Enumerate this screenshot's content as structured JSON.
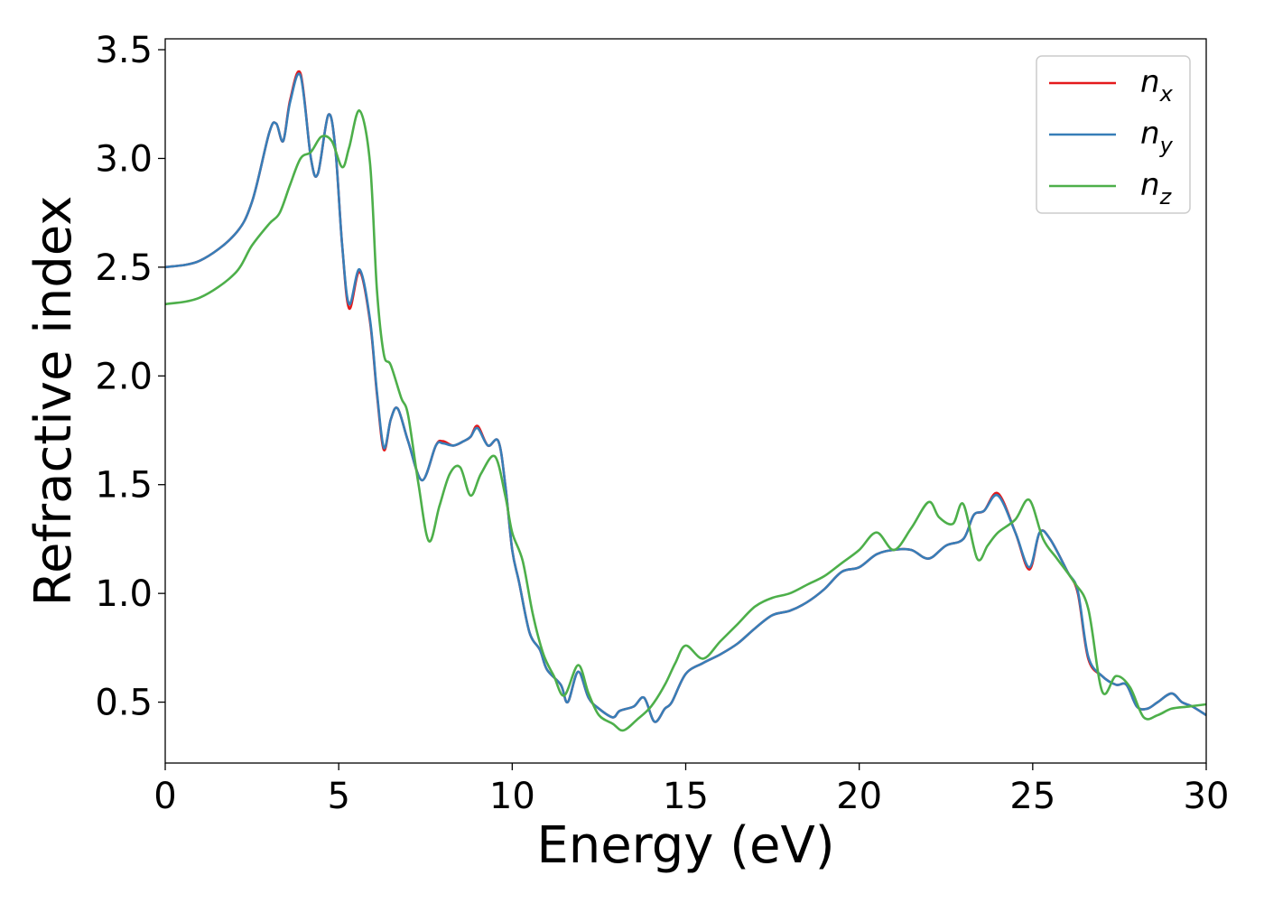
{
  "chart_data": {
    "type": "line",
    "xlabel": "Energy (eV)",
    "ylabel": "Refractive index",
    "xlim": [
      0,
      30
    ],
    "ylim": [
      0.22,
      3.55
    ],
    "xticks": [
      0,
      5,
      10,
      15,
      20,
      25,
      30
    ],
    "yticks": [
      0.5,
      1.0,
      1.5,
      2.0,
      2.5,
      3.0,
      3.5
    ],
    "xtick_labels": [
      "0",
      "5",
      "10",
      "15",
      "20",
      "25",
      "30"
    ],
    "ytick_labels": [
      "0.5",
      "1.0",
      "1.5",
      "2.0",
      "2.5",
      "3.0",
      "3.5"
    ],
    "grid": false,
    "legend_position": "top-right",
    "series": [
      {
        "name_base": "n",
        "name_sub": "x",
        "color": "#e41a1c",
        "x": [
          0,
          1,
          2,
          2.5,
          3,
          3.2,
          3.4,
          3.6,
          3.9,
          4.2,
          4.4,
          4.7,
          4.9,
          5.1,
          5.3,
          5.6,
          5.9,
          6.1,
          6.3,
          6.5,
          6.7,
          7,
          7.4,
          7.8,
          8,
          8.3,
          8.6,
          8.8,
          9,
          9.3,
          9.6,
          9.8,
          10,
          10.2,
          10.5,
          10.8,
          11,
          11.4,
          11.6,
          11.9,
          12.2,
          12.5,
          12.9,
          13.1,
          13.5,
          13.8,
          14.1,
          14.4,
          14.6,
          15,
          15.5,
          16,
          16.5,
          17,
          17.5,
          18,
          18.5,
          19,
          19.5,
          20,
          20.5,
          21,
          21.5,
          22,
          22.5,
          23,
          23.3,
          23.6,
          24,
          24.5,
          24.9,
          25.2,
          25.5,
          26,
          26.3,
          26.6,
          27,
          27.4,
          27.7,
          28,
          28.3,
          28.6,
          29,
          29.3,
          29.6,
          30
        ],
        "y": [
          2.5,
          2.53,
          2.65,
          2.8,
          3.12,
          3.16,
          3.08,
          3.27,
          3.39,
          3.0,
          2.93,
          3.2,
          3.05,
          2.6,
          2.31,
          2.48,
          2.25,
          1.92,
          1.66,
          1.8,
          1.85,
          1.7,
          1.52,
          1.68,
          1.7,
          1.68,
          1.7,
          1.72,
          1.77,
          1.68,
          1.7,
          1.5,
          1.2,
          1.05,
          0.82,
          0.74,
          0.65,
          0.58,
          0.5,
          0.64,
          0.52,
          0.47,
          0.43,
          0.46,
          0.48,
          0.52,
          0.41,
          0.47,
          0.5,
          0.63,
          0.68,
          0.72,
          0.77,
          0.84,
          0.9,
          0.92,
          0.96,
          1.02,
          1.1,
          1.12,
          1.18,
          1.2,
          1.2,
          1.16,
          1.22,
          1.25,
          1.36,
          1.38,
          1.46,
          1.28,
          1.11,
          1.28,
          1.25,
          1.1,
          1.0,
          0.7,
          0.62,
          0.58,
          0.58,
          0.48,
          0.47,
          0.5,
          0.54,
          0.5,
          0.48,
          0.44
        ]
      },
      {
        "name_base": "n",
        "name_sub": "y",
        "color": "#377eb8",
        "x": [
          0,
          1,
          2,
          2.5,
          3,
          3.2,
          3.4,
          3.6,
          3.9,
          4.2,
          4.4,
          4.7,
          4.9,
          5.1,
          5.3,
          5.6,
          5.9,
          6.1,
          6.3,
          6.5,
          6.7,
          7,
          7.4,
          7.8,
          8,
          8.3,
          8.6,
          8.8,
          9,
          9.3,
          9.6,
          9.8,
          10,
          10.2,
          10.5,
          10.8,
          11,
          11.4,
          11.6,
          11.9,
          12.2,
          12.5,
          12.9,
          13.1,
          13.5,
          13.8,
          14.1,
          14.4,
          14.6,
          15,
          15.5,
          16,
          16.5,
          17,
          17.5,
          18,
          18.5,
          19,
          19.5,
          20,
          20.5,
          21,
          21.5,
          22,
          22.5,
          23,
          23.3,
          23.6,
          24,
          24.5,
          24.9,
          25.2,
          25.5,
          26,
          26.3,
          26.6,
          27,
          27.4,
          27.7,
          28,
          28.3,
          28.6,
          29,
          29.3,
          29.6,
          30
        ],
        "y": [
          2.5,
          2.53,
          2.65,
          2.8,
          3.12,
          3.16,
          3.08,
          3.26,
          3.38,
          3.0,
          2.93,
          3.2,
          3.05,
          2.6,
          2.33,
          2.49,
          2.26,
          1.93,
          1.67,
          1.8,
          1.85,
          1.7,
          1.52,
          1.68,
          1.69,
          1.68,
          1.7,
          1.72,
          1.76,
          1.68,
          1.7,
          1.5,
          1.2,
          1.05,
          0.82,
          0.74,
          0.65,
          0.58,
          0.5,
          0.64,
          0.52,
          0.47,
          0.43,
          0.46,
          0.48,
          0.52,
          0.41,
          0.47,
          0.5,
          0.63,
          0.68,
          0.72,
          0.77,
          0.84,
          0.9,
          0.92,
          0.96,
          1.02,
          1.1,
          1.12,
          1.18,
          1.2,
          1.2,
          1.16,
          1.22,
          1.25,
          1.36,
          1.38,
          1.45,
          1.28,
          1.12,
          1.28,
          1.25,
          1.1,
          1.01,
          0.71,
          0.62,
          0.58,
          0.58,
          0.48,
          0.47,
          0.5,
          0.54,
          0.5,
          0.48,
          0.44
        ]
      },
      {
        "name_base": "n",
        "name_sub": "z",
        "color": "#4daf4a",
        "x": [
          0,
          1,
          2,
          2.5,
          3,
          3.3,
          3.6,
          3.9,
          4.2,
          4.5,
          4.8,
          5.1,
          5.3,
          5.6,
          5.9,
          6.1,
          6.3,
          6.5,
          6.8,
          7,
          7.3,
          7.6,
          7.9,
          8.2,
          8.5,
          8.8,
          9.1,
          9.5,
          9.8,
          10,
          10.3,
          10.6,
          10.9,
          11.2,
          11.5,
          11.9,
          12.2,
          12.5,
          12.9,
          13.2,
          13.6,
          14,
          14.4,
          14.7,
          15,
          15.5,
          16,
          16.5,
          17,
          17.5,
          18,
          18.5,
          19,
          19.5,
          20,
          20.5,
          21,
          21.5,
          22,
          22.3,
          22.7,
          23,
          23.4,
          23.7,
          24,
          24.5,
          24.9,
          25.3,
          25.7,
          26.2,
          26.6,
          27,
          27.4,
          27.8,
          28.2,
          28.6,
          29,
          29.5,
          30
        ],
        "y": [
          2.33,
          2.36,
          2.47,
          2.6,
          2.7,
          2.75,
          2.88,
          3.0,
          3.03,
          3.1,
          3.08,
          2.96,
          3.05,
          3.22,
          2.98,
          2.4,
          2.1,
          2.05,
          1.9,
          1.82,
          1.5,
          1.24,
          1.4,
          1.55,
          1.58,
          1.45,
          1.55,
          1.63,
          1.45,
          1.28,
          1.15,
          0.9,
          0.72,
          0.62,
          0.53,
          0.67,
          0.54,
          0.44,
          0.4,
          0.37,
          0.42,
          0.48,
          0.58,
          0.68,
          0.76,
          0.7,
          0.78,
          0.86,
          0.94,
          0.98,
          1.0,
          1.04,
          1.08,
          1.14,
          1.2,
          1.28,
          1.2,
          1.3,
          1.42,
          1.35,
          1.32,
          1.41,
          1.16,
          1.22,
          1.28,
          1.34,
          1.43,
          1.25,
          1.16,
          1.05,
          0.93,
          0.55,
          0.62,
          0.57,
          0.43,
          0.44,
          0.47,
          0.48,
          0.49
        ]
      }
    ]
  }
}
